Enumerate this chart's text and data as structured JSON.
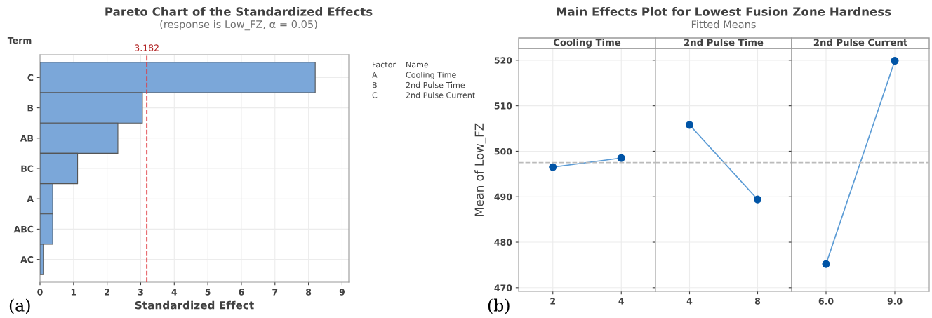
{
  "chart_data": [
    {
      "type": "bar",
      "orientation": "horizontal",
      "title": "Pareto Chart of the Standardized Effects",
      "subtitle": "(response is Low_FZ, α = 0.05)",
      "xlabel": "Standardized Effect",
      "ylabel": "Term",
      "categories": [
        "C",
        "B",
        "AB",
        "BC",
        "A",
        "ABC",
        "AC"
      ],
      "values": [
        8.2,
        3.05,
        2.32,
        1.12,
        0.38,
        0.38,
        0.1
      ],
      "color": "#7ba7d9",
      "xlim": [
        0,
        9.2
      ],
      "xticks": [
        0,
        1,
        2,
        3,
        4,
        5,
        6,
        7,
        8,
        9
      ],
      "grid": true,
      "ref_lines": [
        {
          "axis": "x",
          "value": 3.182,
          "label": "3.182",
          "color": "#e0393e",
          "line_style": "dashed"
        }
      ],
      "annotations": [
        "Factor",
        "Name",
        "A",
        "Cooling Time",
        "B",
        "2nd Pulse Time",
        "C",
        "2nd Pulse Current",
        "(a)"
      ]
    },
    {
      "type": "line",
      "xlabel": "Cooling Time",
      "ylabel": "Mean of Low_FZ",
      "categories": [
        "2",
        "4"
      ],
      "series": [
        {
          "color": "#0054a6",
          "values": [
            496.5,
            498.5
          ]
        }
      ],
      "marker": "circle",
      "line_style": "solid",
      "ylim": [
        469.2,
        522.6
      ],
      "yticks": [
        470,
        480,
        490,
        500,
        510,
        520
      ],
      "grid": true,
      "ref_lines": [
        {
          "axis": "y",
          "value": 497.5,
          "color": "#bbbbbb",
          "line_style": "dashed"
        }
      ],
      "annotations": [
        "(b)"
      ]
    },
    {
      "type": "line",
      "title": "Main Effects Plot for Lowest Fusion Zone Hardness",
      "subtitle": "Fitted Means",
      "xlabel": "2nd Pulse Time",
      "categories": [
        "4",
        "8"
      ],
      "series": [
        {
          "color": "#0054a6",
          "values": [
            505.8,
            489.4
          ]
        }
      ],
      "marker": "circle",
      "line_style": "solid",
      "ylim": [
        469.2,
        522.6
      ],
      "yticks": [
        470,
        480,
        490,
        500,
        510,
        520
      ],
      "grid": true,
      "tick_labels": "x",
      "ref_lines": [
        {
          "axis": "y",
          "value": 497.5,
          "color": "#bbbbbb",
          "line_style": "dashed"
        }
      ]
    },
    {
      "type": "line",
      "xlabel": "2nd Pulse Current",
      "categories": [
        "6.0",
        "9.0"
      ],
      "series": [
        {
          "color": "#0054a6",
          "values": [
            475.2,
            519.9
          ]
        }
      ],
      "marker": "circle",
      "line_style": "solid",
      "ylim": [
        469.2,
        522.6
      ],
      "yticks": [
        470,
        480,
        490,
        500,
        510,
        520
      ],
      "grid": true,
      "tick_labels": "x",
      "ref_lines": [
        {
          "axis": "y",
          "value": 497.5,
          "color": "#bbbbbb",
          "line_style": "dashed"
        }
      ]
    }
  ]
}
